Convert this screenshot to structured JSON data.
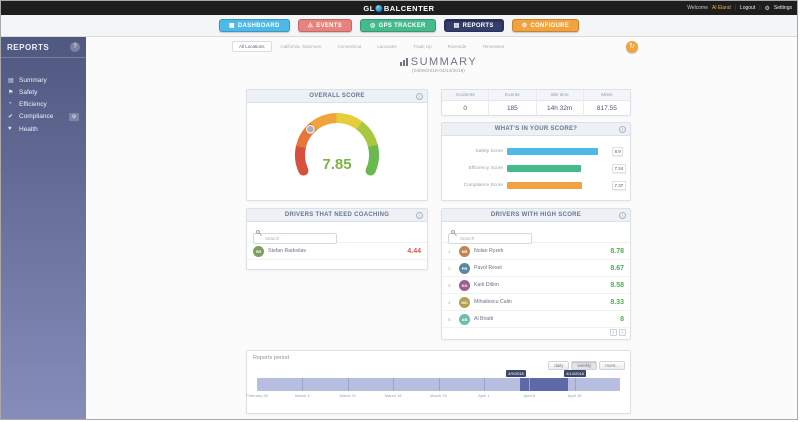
{
  "topbar": {
    "brand_left": "GL",
    "brand_right": "BALCENTER",
    "welcome_prefix": "Welcome",
    "user": "Al Eland",
    "logout": "Logout",
    "settings": "Settings"
  },
  "nav": {
    "items": [
      {
        "label": "DASHBOARD",
        "icon": "dashboard-icon",
        "color": "#4db9e8",
        "active": false
      },
      {
        "label": "EVENTS",
        "icon": "events-icon",
        "color": "#e8827d",
        "active": false
      },
      {
        "label": "GPS TRACKER",
        "icon": "gps-tracker-icon",
        "color": "#45ba8d",
        "active": false
      },
      {
        "label": "REPORTS",
        "icon": "reports-icon",
        "color": "#343f6b",
        "active": true
      },
      {
        "label": "CONFIGURE",
        "icon": "configure-icon",
        "color": "#f2a340",
        "active": false
      }
    ]
  },
  "sidebar": {
    "title": "REPORTS",
    "items": [
      {
        "label": "Summary",
        "icon": "summary-icon",
        "has_gear": false
      },
      {
        "label": "Safety",
        "icon": "safety-icon",
        "has_gear": false
      },
      {
        "label": "Efficiency",
        "icon": "efficiency-icon",
        "has_gear": false
      },
      {
        "label": "Compliance",
        "icon": "compliance-icon",
        "has_gear": true
      },
      {
        "label": "Health",
        "icon": "health-icon",
        "has_gear": false
      }
    ],
    "flyout_label": "REPORTS"
  },
  "tabs": {
    "active_index": 0,
    "items": [
      "All Locations",
      "California, Stanmore",
      "Connecticut",
      "Lancaster",
      "Trade Up",
      "Riverside",
      "Tennessee"
    ]
  },
  "summary": {
    "title": "SUMMARY",
    "date_range": "(04/09/2018-04/14/2018)"
  },
  "overall_score": {
    "header": "OVERALL SCORE",
    "value": "7.85",
    "value_color": "#7cb342",
    "gauge_colors": [
      "#d94f3d",
      "#e8763a",
      "#f0a53c",
      "#e6cd3a",
      "#a8c83f",
      "#69b94f"
    ]
  },
  "stats": {
    "columns": [
      {
        "label": "Incidents",
        "value": "0"
      },
      {
        "label": "Events",
        "value": "185"
      },
      {
        "label": "Idle time",
        "value": "14h 32m"
      },
      {
        "label": "Miles",
        "value": "817.55"
      }
    ]
  },
  "score_breakdown": {
    "header": "WHAT'S IN YOUR SCORE?",
    "max": 10,
    "rows": [
      {
        "label": "Safety Score",
        "value": 8.9,
        "display": "8.9",
        "color": "#4db9e8"
      },
      {
        "label": "Efficiency Score",
        "value": 7.24,
        "display": "7.24",
        "color": "#45ba8d"
      },
      {
        "label": "Compliance Score",
        "value": 7.37,
        "display": "7.37",
        "color": "#f2a340"
      }
    ]
  },
  "coaching": {
    "header": "DRIVERS THAT NEED COACHING",
    "search_placeholder": "Search",
    "score_color": "#e2574c",
    "drivers": [
      {
        "name": "Stefan Radoslav",
        "score": "4.44"
      }
    ]
  },
  "high_score": {
    "header": "DRIVERS WITH HIGH SCORE",
    "search_placeholder": "Search",
    "score_color": "#4fae54",
    "drivers": [
      {
        "rank": "1.",
        "name": "Nolan Ryzek",
        "score": "8.78"
      },
      {
        "rank": "2.",
        "name": "Pavol Resel",
        "score": "8.67"
      },
      {
        "rank": "3.",
        "name": "Karli Dillon",
        "score": "8.58"
      },
      {
        "rank": "4.",
        "name": "Mihailescu Calin",
        "score": "8.33"
      },
      {
        "rank": "5.",
        "name": "Al Briatti",
        "score": "8"
      }
    ]
  },
  "period": {
    "label": "Reports period",
    "buttons": [
      "daily",
      "weekly",
      "mont..."
    ],
    "active_button_index": 1,
    "start_badge": "4/9/2018",
    "end_badge": "4/14/2018",
    "selection": {
      "start_pct": 72.5,
      "width_pct": 13.2
    },
    "ticks": [
      "February 26",
      "March 4",
      "March 11",
      "March 18",
      "March 25",
      "April 1",
      "April 8",
      "April 15"
    ]
  }
}
